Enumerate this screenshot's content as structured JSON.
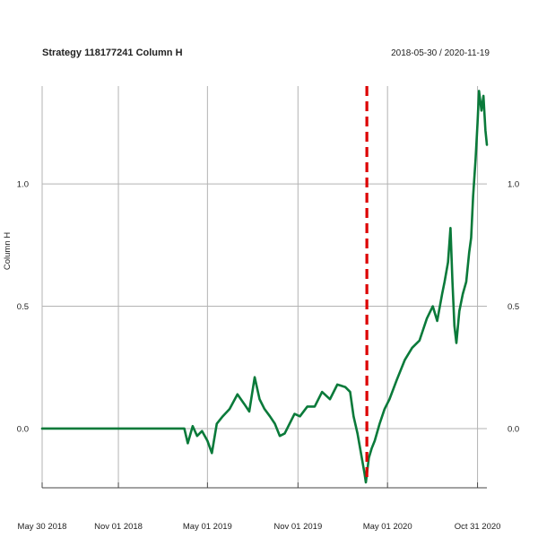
{
  "chart_data": {
    "type": "line",
    "title": "Strategy 118177241 Column H",
    "date_range": "2018-05-30 / 2020-11-19",
    "ylabel": "Column H",
    "xlim": [
      "2018-05-30",
      "2020-11-19"
    ],
    "ylim": [
      -0.22,
      1.4
    ],
    "grid": true,
    "x_ticks": [
      {
        "date": "2018-05-30",
        "label": "May 30 2018"
      },
      {
        "date": "2018-11-01",
        "label": "Nov 01 2018"
      },
      {
        "date": "2019-05-01",
        "label": "May 01 2019"
      },
      {
        "date": "2019-11-01",
        "label": "Nov 01 2019"
      },
      {
        "date": "2020-05-01",
        "label": "May 01 2020"
      },
      {
        "date": "2020-10-31",
        "label": "Oct 31 2020"
      }
    ],
    "y_ticks": [
      {
        "value": 0.0,
        "label": "0.0"
      },
      {
        "value": 0.5,
        "label": "0.5"
      },
      {
        "value": 1.0,
        "label": "1.0"
      }
    ],
    "vline": {
      "date": "2020-03-20",
      "color": "#dd0000",
      "style": "dashed"
    },
    "series": [
      {
        "color": "#0a7a3a",
        "points": [
          [
            "2018-05-30",
            0.0
          ],
          [
            "2019-03-15",
            0.0
          ],
          [
            "2019-03-22",
            -0.06
          ],
          [
            "2019-04-01",
            0.01
          ],
          [
            "2019-04-10",
            -0.03
          ],
          [
            "2019-04-20",
            -0.01
          ],
          [
            "2019-05-01",
            -0.05
          ],
          [
            "2019-05-10",
            -0.1
          ],
          [
            "2019-05-20",
            0.02
          ],
          [
            "2019-06-01",
            0.05
          ],
          [
            "2019-06-15",
            0.08
          ],
          [
            "2019-07-01",
            0.14
          ],
          [
            "2019-07-15",
            0.1
          ],
          [
            "2019-07-25",
            0.07
          ],
          [
            "2019-08-05",
            0.21
          ],
          [
            "2019-08-15",
            0.12
          ],
          [
            "2019-08-25",
            0.08
          ],
          [
            "2019-09-05",
            0.05
          ],
          [
            "2019-09-15",
            0.02
          ],
          [
            "2019-09-25",
            -0.03
          ],
          [
            "2019-10-05",
            -0.02
          ],
          [
            "2019-10-15",
            0.02
          ],
          [
            "2019-10-25",
            0.06
          ],
          [
            "2019-11-05",
            0.05
          ],
          [
            "2019-11-20",
            0.09
          ],
          [
            "2019-12-05",
            0.09
          ],
          [
            "2019-12-20",
            0.15
          ],
          [
            "2020-01-05",
            0.12
          ],
          [
            "2020-01-20",
            0.18
          ],
          [
            "2020-02-05",
            0.17
          ],
          [
            "2020-02-15",
            0.15
          ],
          [
            "2020-02-22",
            0.05
          ],
          [
            "2020-03-01",
            -0.02
          ],
          [
            "2020-03-08",
            -0.1
          ],
          [
            "2020-03-15",
            -0.18
          ],
          [
            "2020-03-18",
            -0.22
          ],
          [
            "2020-03-24",
            -0.12
          ],
          [
            "2020-03-30",
            -0.08
          ],
          [
            "2020-04-05",
            -0.05
          ],
          [
            "2020-04-15",
            0.02
          ],
          [
            "2020-04-25",
            0.08
          ],
          [
            "2020-05-05",
            0.12
          ],
          [
            "2020-05-20",
            0.2
          ],
          [
            "2020-06-05",
            0.28
          ],
          [
            "2020-06-20",
            0.33
          ],
          [
            "2020-07-05",
            0.36
          ],
          [
            "2020-07-20",
            0.45
          ],
          [
            "2020-08-01",
            0.5
          ],
          [
            "2020-08-10",
            0.44
          ],
          [
            "2020-08-20",
            0.55
          ],
          [
            "2020-08-25",
            0.6
          ],
          [
            "2020-09-01",
            0.68
          ],
          [
            "2020-09-06",
            0.82
          ],
          [
            "2020-09-10",
            0.6
          ],
          [
            "2020-09-14",
            0.42
          ],
          [
            "2020-09-18",
            0.35
          ],
          [
            "2020-09-24",
            0.48
          ],
          [
            "2020-10-01",
            0.55
          ],
          [
            "2020-10-08",
            0.6
          ],
          [
            "2020-10-14",
            0.72
          ],
          [
            "2020-10-18",
            0.78
          ],
          [
            "2020-10-22",
            0.95
          ],
          [
            "2020-10-27",
            1.1
          ],
          [
            "2020-10-31",
            1.25
          ],
          [
            "2020-11-03",
            1.38
          ],
          [
            "2020-11-08",
            1.3
          ],
          [
            "2020-11-12",
            1.36
          ],
          [
            "2020-11-16",
            1.22
          ],
          [
            "2020-11-19",
            1.16
          ]
        ]
      }
    ]
  }
}
